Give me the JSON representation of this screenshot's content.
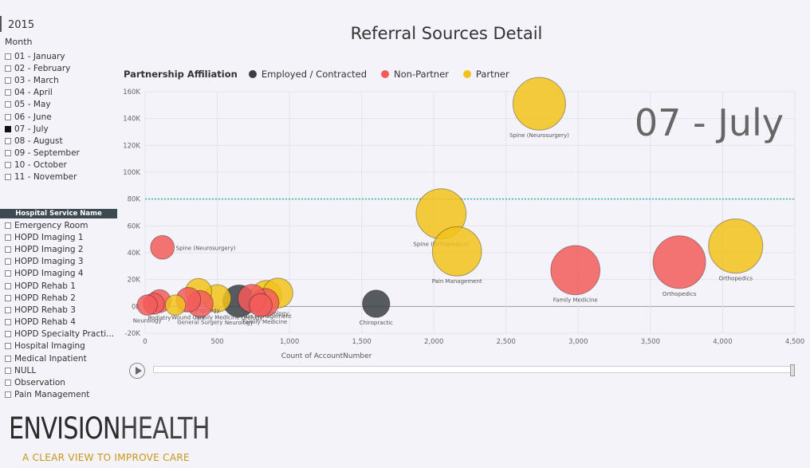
{
  "year": "2015",
  "month_slicer": {
    "title": "Month",
    "items": [
      {
        "label": "01 - January",
        "checked": false
      },
      {
        "label": "02 - February",
        "checked": false
      },
      {
        "label": "03 - March",
        "checked": false
      },
      {
        "label": "04 - April",
        "checked": false
      },
      {
        "label": "05 - May",
        "checked": false
      },
      {
        "label": "06 - June",
        "checked": false
      },
      {
        "label": "07 - July",
        "checked": true
      },
      {
        "label": "08 - August",
        "checked": false
      },
      {
        "label": "09 - September",
        "checked": false
      },
      {
        "label": "10 - October",
        "checked": false
      },
      {
        "label": "11 - November",
        "checked": false
      }
    ]
  },
  "service_slicer": {
    "title": "Hospital Service Name",
    "items": [
      "Emergency Room",
      "HOPD Imaging 1",
      "HOPD Imaging 2",
      "HOPD Imaging 3",
      "HOPD Imaging 4",
      "HOPD Rehab 1",
      "HOPD Rehab 2",
      "HOPD Rehab 3",
      "HOPD Rehab 4",
      "HOPD Specialty Practi...",
      "Hospital Imaging",
      "Medical Inpatient",
      "NULL",
      "Observation",
      "Pain Management"
    ]
  },
  "legend": {
    "title": "Partnership Affiliation",
    "items": [
      {
        "label": "Employed / Contracted",
        "color": "#3a3f44"
      },
      {
        "label": "Non-Partner",
        "color": "#f25c5c"
      },
      {
        "label": "Partner",
        "color": "#f2c21b"
      }
    ]
  },
  "branding": {
    "logo_bold": "ENVISION",
    "logo_light": "HEALTH",
    "tagline": "A CLEAR VIEW TO IMPROVE CARE"
  },
  "colors": {
    "employed": "#3a3f44",
    "non_partner": "#f25c5c",
    "partner": "#f2c21b",
    "reference_line": "#3fb5b0"
  },
  "chart_data": {
    "type": "scatter",
    "title": "Referral Sources Detail",
    "xlabel": "Count of AccountNumber",
    "ylabel": "",
    "xlim": [
      0,
      4500
    ],
    "ylim": [
      -20000,
      160000
    ],
    "x_ticks": [
      0,
      500,
      1000,
      1500,
      2000,
      2500,
      3000,
      3500,
      4000,
      4500
    ],
    "x_tick_labels": [
      "0",
      "500",
      "1,000",
      "1,500",
      "2,000",
      "2,500",
      "3,000",
      "3,500",
      "4,000",
      "4,500"
    ],
    "y_ticks": [
      -20000,
      0,
      20000,
      40000,
      60000,
      80000,
      100000,
      120000,
      140000,
      160000
    ],
    "y_tick_labels": [
      "-20K",
      "0K",
      "20K",
      "40K",
      "60K",
      "80K",
      "100K",
      "120K",
      "140K",
      "160K"
    ],
    "reference_line_y": 80000,
    "play_axis_label": "07 - July",
    "grid": true,
    "legend_position": "top-left",
    "points": [
      {
        "label": "Spine (Neurosurgery)",
        "x": 2730,
        "y": 151000,
        "size": 1500,
        "group": "partner"
      },
      {
        "label": "Spine (Orthopedics)",
        "x": 2050,
        "y": 69000,
        "size": 1350,
        "group": "partner"
      },
      {
        "label": "Pain Management",
        "x": 2160,
        "y": 41000,
        "size": 1300,
        "group": "partner"
      },
      {
        "label": "Orthopedics",
        "x": 4090,
        "y": 45000,
        "size": 1600,
        "group": "partner"
      },
      {
        "label": "Orthopedics",
        "x": 3700,
        "y": 33000,
        "size": 1500,
        "group": "non_partner"
      },
      {
        "label": "Family Medicine",
        "x": 2980,
        "y": 27000,
        "size": 1300,
        "group": "non_partner"
      },
      {
        "label": "Spine (Neurosurgery)",
        "x": 120,
        "y": 44000,
        "size": 260,
        "group": "non_partner"
      },
      {
        "label": "Chiropractic",
        "x": 1600,
        "y": 2000,
        "size": 360,
        "group": "employed"
      },
      {
        "label": "Urology",
        "x": 920,
        "y": 10000,
        "size": 440,
        "group": "partner"
      },
      {
        "label": "Pain Management",
        "x": 840,
        "y": 8000,
        "size": 460,
        "group": "partner"
      },
      {
        "label": "Family Medicine",
        "x": 830,
        "y": 3000,
        "size": 380,
        "group": "non_partner"
      },
      {
        "label": "Neurology",
        "x": 650,
        "y": 4000,
        "size": 520,
        "group": "employed"
      },
      {
        "label": "Urology",
        "x": 740,
        "y": 6000,
        "size": 380,
        "group": "non_partner"
      },
      {
        "label": "Otolaryngology",
        "x": 370,
        "y": 11000,
        "size": 330,
        "group": "partner"
      },
      {
        "label": "Family Medicine",
        "x": 500,
        "y": 6000,
        "size": 360,
        "group": "partner"
      },
      {
        "label": "General Surgery",
        "x": 380,
        "y": 2000,
        "size": 330,
        "group": "non_partner"
      },
      {
        "label": "Wound Care",
        "x": 300,
        "y": 5000,
        "size": 280,
        "group": "non_partner"
      },
      {
        "label": "Podiatry",
        "x": 100,
        "y": 4000,
        "size": 240,
        "group": "non_partner"
      },
      {
        "label": "",
        "x": 60,
        "y": 2000,
        "size": 200,
        "group": "non_partner"
      },
      {
        "label": "Neurology",
        "x": 15,
        "y": 1000,
        "size": 180,
        "group": "non_partner"
      },
      {
        "label": "",
        "x": 210,
        "y": 1000,
        "size": 180,
        "group": "partner"
      },
      {
        "label": "",
        "x": 800,
        "y": 1000,
        "size": 240,
        "group": "non_partner"
      }
    ]
  }
}
